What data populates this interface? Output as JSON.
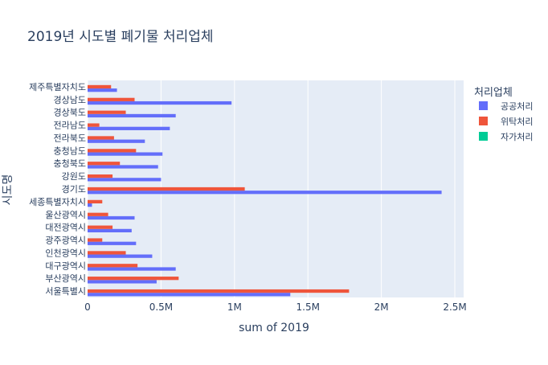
{
  "chart_data": {
    "type": "bar",
    "orientation": "horizontal",
    "barmode": "group",
    "title": "2019년 시도별 폐기물 처리업체",
    "xlabel": "sum of 2019",
    "ylabel": "시도명",
    "xlim": [
      0,
      2500000
    ],
    "xticks": [
      {
        "value": 0,
        "label": "0"
      },
      {
        "value": 500000,
        "label": "0.5M"
      },
      {
        "value": 1000000,
        "label": "1M"
      },
      {
        "value": 1500000,
        "label": "1.5M"
      },
      {
        "value": 2000000,
        "label": "2M"
      },
      {
        "value": 2500000,
        "label": "2.5M"
      }
    ],
    "grid": true,
    "legend": {
      "title": "처리업체",
      "position": "right"
    },
    "categories": [
      "서울특별시",
      "부산광역시",
      "대구광역시",
      "인천광역시",
      "광주광역시",
      "대전광역시",
      "울산광역시",
      "세종특별자치시",
      "경기도",
      "강원도",
      "충청북도",
      "충청남도",
      "전라북도",
      "전라남도",
      "경상북도",
      "경상남도",
      "제주특별자치도"
    ],
    "series": [
      {
        "name": "공공처리",
        "color": "#636efa",
        "values": [
          1380000,
          470000,
          600000,
          440000,
          330000,
          300000,
          320000,
          30000,
          2410000,
          500000,
          480000,
          510000,
          390000,
          560000,
          600000,
          980000,
          200000
        ]
      },
      {
        "name": "위탁처리",
        "color": "#ef553b",
        "values": [
          1780000,
          620000,
          340000,
          260000,
          100000,
          170000,
          140000,
          100000,
          1070000,
          170000,
          220000,
          330000,
          180000,
          80000,
          260000,
          320000,
          160000
        ]
      },
      {
        "name": "자가처리",
        "color": "#00cc96",
        "values": [
          0,
          0,
          0,
          0,
          0,
          0,
          0,
          0,
          0,
          0,
          0,
          0,
          0,
          0,
          0,
          0,
          0
        ]
      }
    ]
  }
}
